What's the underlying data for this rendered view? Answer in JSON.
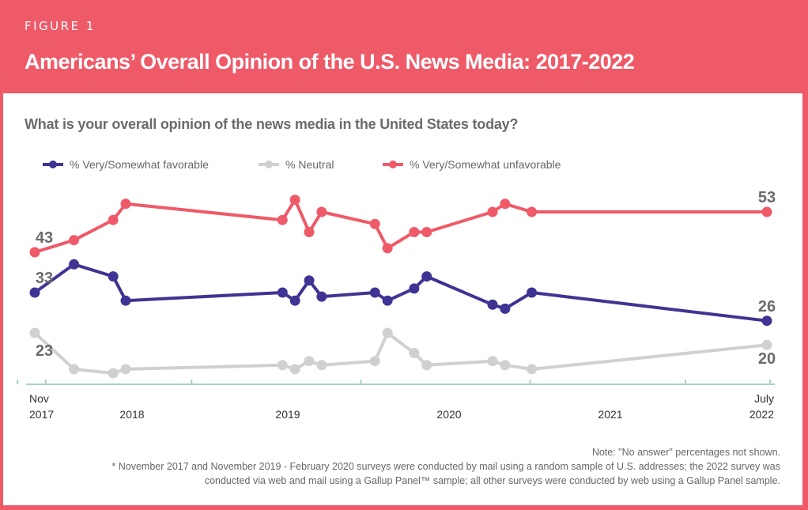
{
  "header": {
    "figure_label": "FIGURE 1",
    "title": "Americans’ Overall Opinion of the U.S. News Media: 2017-2022"
  },
  "question": "What is your overall opinion of the news media in the United States today?",
  "legend": [
    {
      "label": "% Very/Somewhat favorable",
      "color": "#3f3493"
    },
    {
      "label": "% Neutral",
      "color": "#d0d0d0"
    },
    {
      "label": "% Very/Somewhat unfavorable",
      "color": "#ef5a68"
    }
  ],
  "notes": {
    "line1": "Note: \"No answer\" percentages not shown.",
    "line2": "* November 2017 and November 2019 - February 2020 surveys were conducted by mail using a random sample of U.S. addresses; the 2022 survey was",
    "line3": "conducted via web and mail using a Gallup Panel™ sample; all other surveys were conducted by web using a Gallup Panel sample."
  },
  "colors": {
    "brand": "#ef5a68",
    "favorable": "#3f3493",
    "neutral": "#d0d0d0",
    "unfavorable": "#ef5a68",
    "axis": "#a8d4c8",
    "label": "#6b6b6b"
  },
  "chart_data": {
    "type": "line",
    "title": "Americans’ Overall Opinion of the U.S. News Media: 2017-2022",
    "subtitle": "What is your overall opinion of the news media in the United States today?",
    "xlabel": "",
    "ylabel": "",
    "ylim": [
      10,
      60
    ],
    "grid": false,
    "legend_position": "top-left",
    "x": [
      2017.87,
      2018.12,
      2018.37,
      2018.45,
      2019.45,
      2019.53,
      2019.62,
      2019.7,
      2020.04,
      2020.12,
      2020.29,
      2020.37,
      2020.79,
      2020.87,
      2021.04,
      2022.54
    ],
    "x_ticks": [
      {
        "value": 2017.85,
        "label": [
          "Nov",
          "2017"
        ]
      },
      {
        "value": 2018.0,
        "label": [
          "",
          "2018"
        ]
      },
      {
        "value": 2019.0,
        "label": [
          "",
          "2019"
        ]
      },
      {
        "value": 2020.0,
        "label": [
          "",
          "2020"
        ]
      },
      {
        "value": 2021.0,
        "label": [
          "",
          "2021"
        ]
      },
      {
        "value": 2022.0,
        "label": [
          "",
          ""
        ]
      },
      {
        "value": 2022.56,
        "label": [
          "July",
          "2022"
        ]
      }
    ],
    "x_label_positions": [
      {
        "value": 2017.85,
        "text": [
          "Nov",
          "2017"
        ]
      },
      {
        "value": 2018.5,
        "text": [
          "",
          "2018"
        ]
      },
      {
        "value": 2019.5,
        "text": [
          "",
          "2019"
        ]
      },
      {
        "value": 2020.5,
        "text": [
          "",
          "2020"
        ]
      },
      {
        "value": 2021.5,
        "text": [
          "",
          "2021"
        ]
      },
      {
        "value": 2022.56,
        "text": [
          "July",
          "2022"
        ]
      }
    ],
    "series": [
      {
        "name": "% Very/Somewhat unfavorable",
        "key": "unfavorable",
        "values": [
          43,
          46,
          51,
          55,
          51,
          56,
          48,
          53,
          50,
          44,
          48,
          48,
          53,
          55,
          53,
          53
        ],
        "start_label": "43",
        "end_label": "53"
      },
      {
        "name": "% Very/Somewhat favorable",
        "key": "favorable",
        "values": [
          33,
          40,
          37,
          31,
          33,
          31,
          36,
          32,
          33,
          31,
          34,
          37,
          30,
          29,
          33,
          26
        ],
        "start_label": "33",
        "end_label": "26"
      },
      {
        "name": "% Neutral",
        "key": "neutral",
        "values": [
          23,
          14,
          13,
          14,
          15,
          14,
          16,
          15,
          16,
          23,
          18,
          15,
          16,
          15,
          14,
          20
        ],
        "start_label": "23",
        "end_label": "20"
      }
    ]
  }
}
